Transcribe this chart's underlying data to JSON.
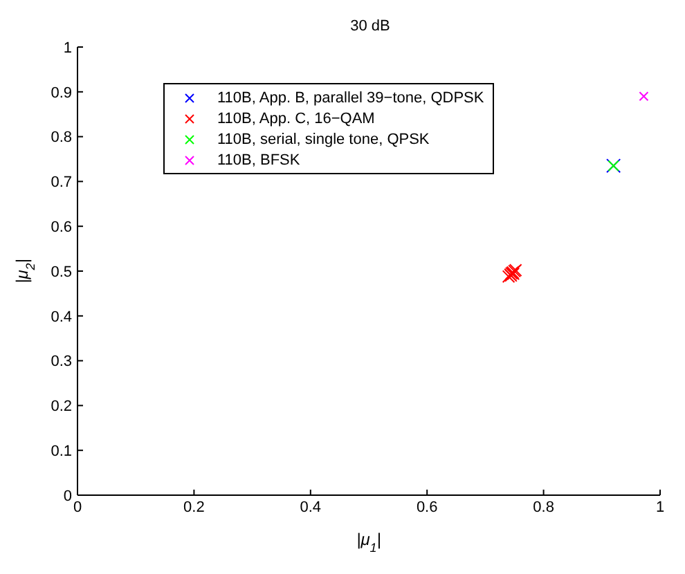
{
  "chart_data": {
    "type": "scatter",
    "title": "30 dB",
    "xlabel": "|μ$_{1}$|",
    "ylabel": "|μ$_{2}$|",
    "xlim": [
      0,
      1
    ],
    "ylim": [
      0,
      1
    ],
    "xticks": [
      0,
      0.2,
      0.4,
      0.6,
      0.8,
      1
    ],
    "yticks": [
      0,
      0.1,
      0.2,
      0.3,
      0.4,
      0.5,
      0.6,
      0.7,
      0.8,
      0.9,
      1
    ],
    "grid": false,
    "legend": "top left",
    "marker": "cross",
    "series": [
      {
        "name": "110B, App. B, parallel 39−tone, QDPSK",
        "color": "#0000ff",
        "x": [
          0.92
        ],
        "values": [
          0.735
        ]
      },
      {
        "name": "110B, App. C, 16−QAM",
        "color": "#ff0000",
        "x": [
          0.74,
          0.743,
          0.745,
          0.747,
          0.75,
          0.752,
          0.744,
          0.748
        ],
        "values": [
          0.488,
          0.492,
          0.495,
          0.497,
          0.5,
          0.502,
          0.49,
          0.494
        ]
      },
      {
        "name": "110B, serial, single tone, QPSK",
        "color": "#00ff00",
        "x": [
          0.92
        ],
        "values": [
          0.735
        ]
      },
      {
        "name": "110B, BFSK",
        "color": "#ff00ff",
        "x": [
          0.972
        ],
        "values": [
          0.89
        ]
      }
    ]
  }
}
